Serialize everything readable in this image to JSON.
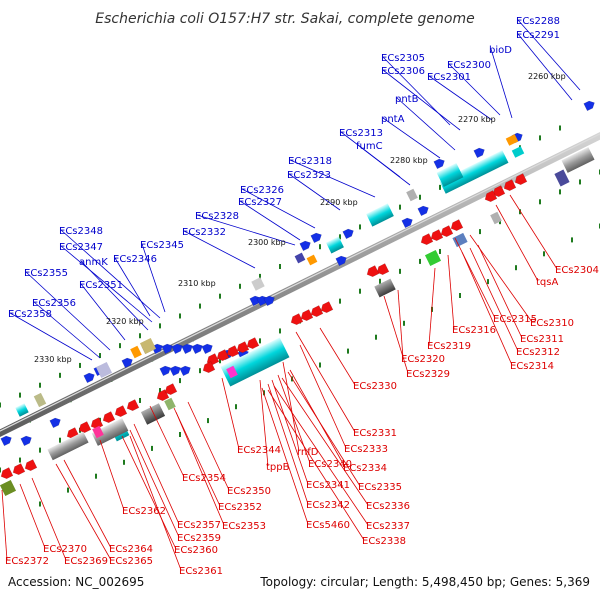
{
  "header": {
    "title": "Escherichia coli O157:H7 str. Sakai, complete genome"
  },
  "footer": {
    "accession": "Accession: NC_002695",
    "summary": "Topology: circular; Length: 5,498,450 bp; Genes: 5,369"
  },
  "colors": {
    "forward_label": "#0000cc",
    "reverse_label": "#dd0000",
    "forward_arrow": "#1430e6",
    "reverse_arrow": "#ee1111",
    "backbone": "#888888",
    "tick": "#1e7a1e"
  },
  "map": {
    "scale_labels": [
      "2260 kbp",
      "2270 kbp",
      "2280 kbp",
      "2290 kbp",
      "2300 kbp",
      "2310 kbp",
      "2320 kbp",
      "2330 kbp"
    ],
    "forward_genes": [
      "ECs2288",
      "ECs2291",
      "bioD",
      "ECs2300",
      "ECs2301",
      "ECs2305",
      "ECs2306",
      "pntB",
      "pntA",
      "ECs2313",
      "fumC",
      "ECs2318",
      "ECs2323",
      "ECs2326",
      "ECs2327",
      "ECs2328",
      "ECs2332",
      "ECs2348",
      "ECs2347",
      "anmK",
      "ECs2346",
      "ECs2345",
      "ECs2355",
      "ECs2351",
      "ECs2356",
      "ECs2358"
    ],
    "reverse_genes": [
      "ECs2304",
      "tqsA",
      "ECs2310",
      "ECs2315",
      "ECs2311",
      "ECs2316",
      "ECs2312",
      "ECs2314",
      "ECs2319",
      "ECs2320",
      "ECs2329",
      "ECs2330",
      "ECs2331",
      "ECs2333",
      "ECs2344",
      "rnfD",
      "ECs2334",
      "tppB",
      "ECs2340",
      "ECs2335",
      "ECs2354",
      "ECs2341",
      "ECs2350",
      "ECs2336",
      "ECs2342",
      "ECs2352",
      "ECs2362",
      "ECs2357",
      "ECs2353",
      "ECs5460",
      "ECs2337",
      "ECs2359",
      "ECs2338",
      "ECs2360",
      "ECs2364",
      "ECs2370",
      "ECs2365",
      "ECs2369",
      "ECs2372",
      "ECs2361"
    ]
  }
}
